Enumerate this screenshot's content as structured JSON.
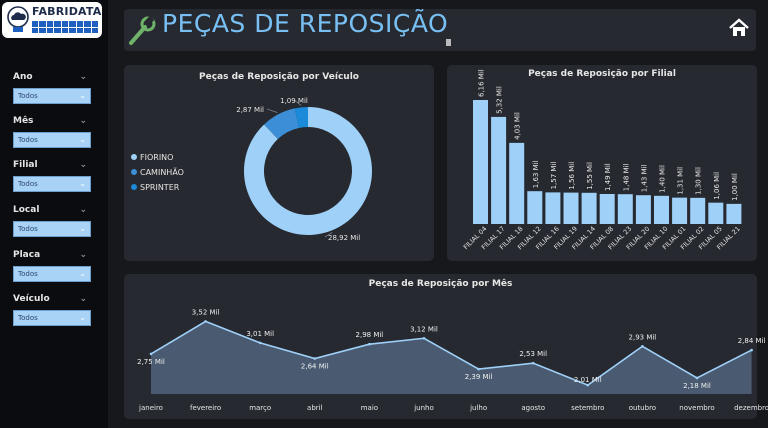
{
  "logo": {
    "text": "FABRIDATA"
  },
  "header": {
    "title": "PEÇAS DE REPOSIÇÃO"
  },
  "filters": [
    {
      "label": "Ano",
      "value": "Todos"
    },
    {
      "label": "Mês",
      "value": "Todos"
    },
    {
      "label": "Filial",
      "value": "Todos"
    },
    {
      "label": "Local",
      "value": "Todos"
    },
    {
      "label": "Placa",
      "value": "Todos"
    },
    {
      "label": "Veículo",
      "value": "Todos"
    }
  ],
  "colors": {
    "accent": "#78c0f4",
    "bar": "#9fd0f8",
    "area": "#4a5a70",
    "line": "#9fd0f8"
  },
  "chart_data": [
    {
      "type": "pie",
      "title": "Peças de Reposição por Veículo",
      "categories": [
        "FIORINO",
        "CAMINHÃO",
        "SPRINTER"
      ],
      "values": [
        28.92,
        2.87,
        1.09
      ],
      "labels": [
        "28,92 Mil",
        "2,87 Mil",
        "1,09 Mil"
      ],
      "colors": [
        "#9fd0f8",
        "#3c8fd6",
        "#1b8ad8"
      ],
      "legend": "left"
    },
    {
      "type": "bar",
      "title": "Peças de Reposição por Filial",
      "categories": [
        "FILIAL 04",
        "FILIAL 17",
        "FILIAL 18",
        "FILIAL 12",
        "FILIAL 16",
        "FILIAL 19",
        "FILIAL 14",
        "FILIAL 08",
        "FILIAL 23",
        "FILIAL 20",
        "FILIAL 10",
        "FILIAL 01",
        "FILIAL 02",
        "FILIAL 05",
        "FILIAL 21"
      ],
      "values": [
        6.16,
        5.32,
        4.03,
        1.63,
        1.57,
        1.56,
        1.55,
        1.49,
        1.48,
        1.43,
        1.4,
        1.31,
        1.3,
        1.06,
        1.0
      ],
      "labels": [
        "6,16 Mil",
        "5,32 Mil",
        "4,03 Mil",
        "1,63 Mil",
        "1,57 Mil",
        "1,56 Mil",
        "1,55 Mil",
        "1,49 Mil",
        "1,48 Mil",
        "1,43 Mil",
        "1,40 Mil",
        "1,31 Mil",
        "1,30 Mil",
        "1,06 Mil",
        "1,00 Mil"
      ]
    },
    {
      "type": "area",
      "title": "Peças de Reposição por Mês",
      "categories": [
        "janeiro",
        "fevereiro",
        "março",
        "abril",
        "maio",
        "junho",
        "julho",
        "agosto",
        "setembro",
        "outubro",
        "novembro",
        "dezembro"
      ],
      "values": [
        2.75,
        3.52,
        3.01,
        2.64,
        2.98,
        3.12,
        2.39,
        2.53,
        2.01,
        2.93,
        2.18,
        2.84
      ],
      "labels": [
        "2,75 Mil",
        "3,52 Mil",
        "3,01 Mil",
        "2,64 Mil",
        "2,98 Mil",
        "3,12 Mil",
        "2,39 Mil",
        "2,53 Mil",
        "2,01 Mil",
        "2,93 Mil",
        "2,18 Mil",
        "2,84 Mil"
      ]
    }
  ]
}
